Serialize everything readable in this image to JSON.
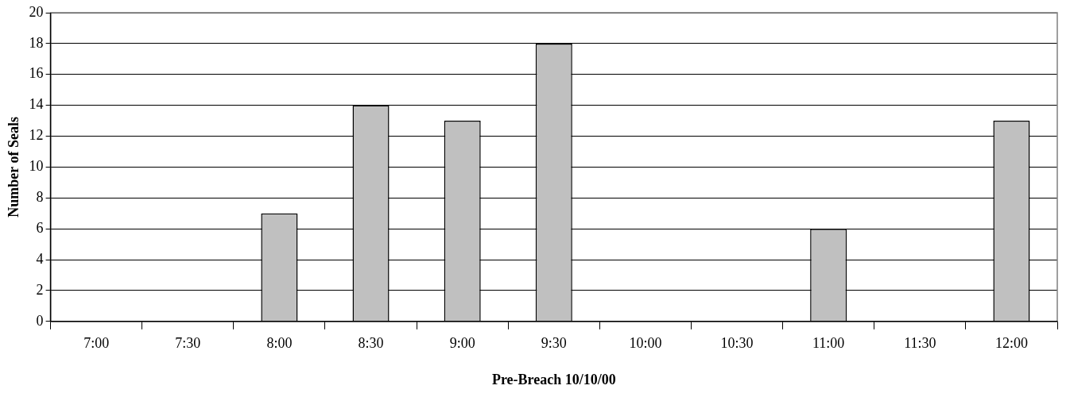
{
  "chart_data": {
    "type": "bar",
    "xlabel": "Pre-Breach 10/10/00",
    "ylabel": "Number of Seals",
    "categories": [
      "7:00",
      "7:30",
      "8:00",
      "8:30",
      "9:00",
      "9:30",
      "10:00",
      "10:30",
      "11:00",
      "11:30",
      "12:00"
    ],
    "values": [
      0,
      0,
      7,
      14,
      13,
      18,
      0,
      0,
      6,
      0,
      13
    ],
    "color": "#c0c0c0",
    "ylim": [
      0,
      20
    ],
    "yticks": [
      0,
      2,
      4,
      6,
      8,
      10,
      12,
      14,
      16,
      18,
      20
    ],
    "grid": "y",
    "legend": false
  }
}
